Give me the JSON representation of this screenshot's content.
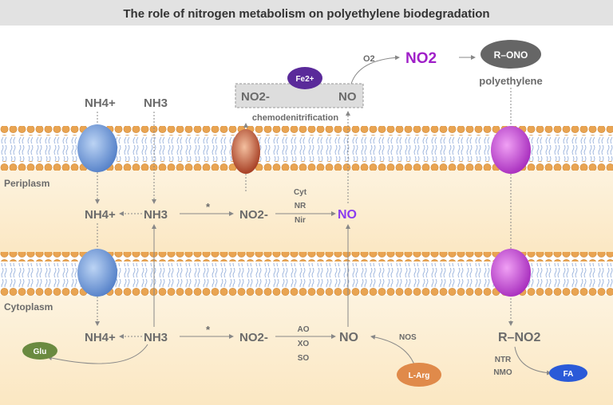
{
  "title": "The role of nitrogen metabolism on polyethylene biodegradation",
  "colors": {
    "purple_text": "#a020c8",
    "no_blue_purple": "#8a3cf0",
    "membrane_head": "#e8a050",
    "background_cream": "#fdf1d8"
  },
  "top": {
    "o2": "O2",
    "no2": "NO2",
    "r_ono": "R–ONO",
    "polyethylene": "polyethylene",
    "fe": "Fe2+",
    "box_no2": "NO2-",
    "box_no": "NO",
    "chemodenitrification": "chemodenitrification",
    "nh4": "NH4+",
    "nh3": "NH3"
  },
  "compartments": {
    "periplasm": "Periplasm",
    "cytoplasm": "Cytoplasm"
  },
  "periplasm_row": {
    "nh4": "NH4+",
    "nh3": "NH3",
    "star": "*",
    "no2": "NO2-",
    "enzymes": [
      "Cyt",
      "NR",
      "Nir"
    ],
    "no": "NO"
  },
  "cytoplasm_row": {
    "nh4": "NH4+",
    "nh3": "NH3",
    "star": "*",
    "no2": "NO2-",
    "enzymes": [
      "AO",
      "XO",
      "SO"
    ],
    "no": "NO",
    "nos": "NOS",
    "larg": "L-Arg",
    "glu": "Glu",
    "rno2": "R–NO2",
    "enzymes2": [
      "NTR",
      "NMO"
    ],
    "fa": "FA"
  }
}
